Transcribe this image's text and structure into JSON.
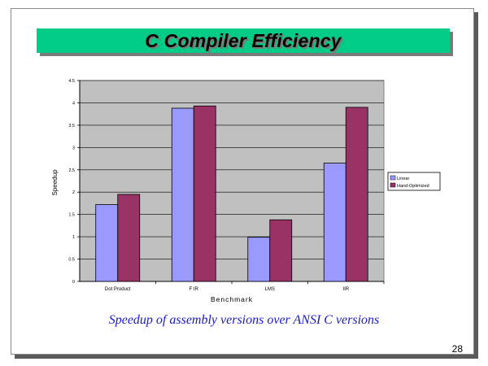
{
  "slide": {
    "title": "C Compiler Efficiency",
    "subtitle": "Speedup of assembly versions over ANSI C versions",
    "page_number": "28"
  },
  "colors": {
    "title_background": "#00CC88",
    "plot_background": "#C0C0C0",
    "subtitle_text": "#1A1ACC",
    "series": [
      "#9999FF",
      "#993366"
    ]
  },
  "chart_data": {
    "type": "bar",
    "title": "",
    "xlabel": "Benchmark",
    "ylabel": "Speedup",
    "categories": [
      "Dot Product",
      "FIR",
      "LMS",
      "IIR"
    ],
    "category_labels": [
      "Dot Product",
      "F IR",
      "LMS",
      "IIR"
    ],
    "series": [
      {
        "name": "Linear",
        "values": [
          1.72,
          3.88,
          0.99,
          2.65
        ]
      },
      {
        "name": "Hand-Optimized",
        "values": [
          1.95,
          3.93,
          1.38,
          3.9
        ]
      }
    ],
    "ylim": [
      0,
      4.5
    ],
    "yticks": [
      0,
      0.5,
      1,
      1.5,
      2,
      2.5,
      3,
      3.5,
      4,
      4.5
    ],
    "ytick_labels": [
      "0",
      "0.5",
      "1",
      "1.5",
      "2",
      "2.5",
      "3",
      "3.5",
      "4",
      "4.5"
    ],
    "grid": true,
    "legend_position": "right"
  }
}
